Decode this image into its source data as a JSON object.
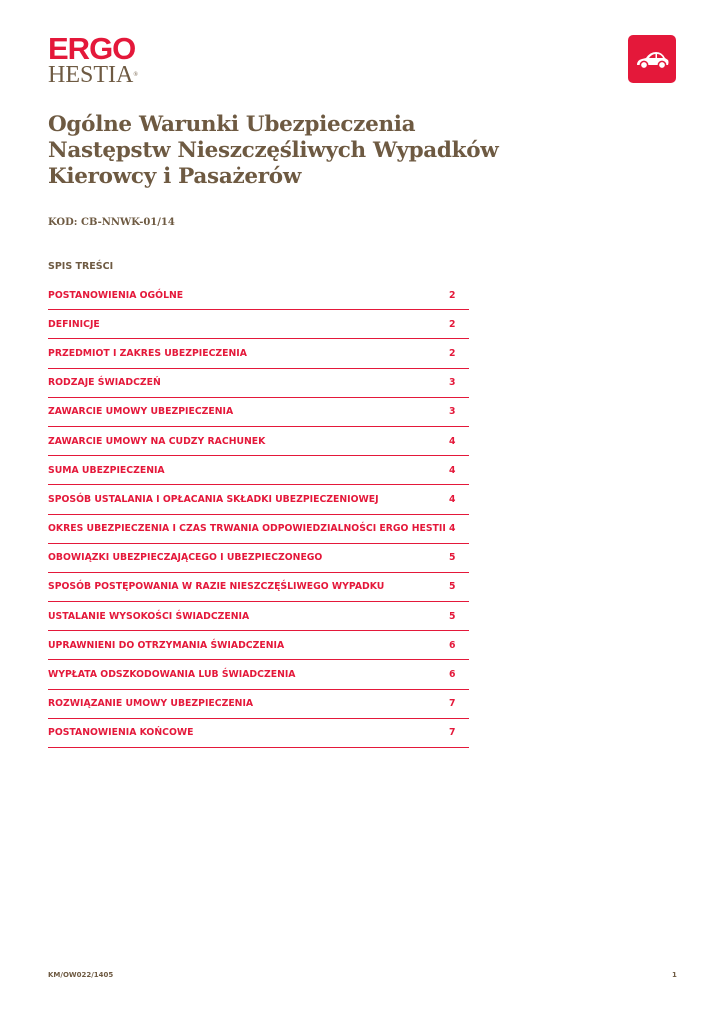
{
  "logo": {
    "line1": "ERGO",
    "line2": "HESTIA",
    "reg": "®"
  },
  "icon": "car-icon",
  "title_lines": [
    "Ogólne Warunki Ubezpieczenia",
    "Następstw Nieszczęśliwych Wypadków",
    "Kierowcy i Pasażerów"
  ],
  "code": "KOD: CB-NNWK-01/14",
  "toc": {
    "heading": "SPIS TREŚCI",
    "items": [
      {
        "label": "POSTANOWIENIA OGÓLNE",
        "page": "2"
      },
      {
        "label": "DEFINICJE",
        "page": "2"
      },
      {
        "label": "PRZEDMIOT I ZAKRES UBEZPIECZENIA",
        "page": "2"
      },
      {
        "label": "RODZAJE ŚWIADCZEŃ",
        "page": "3"
      },
      {
        "label": "ZAWARCIE UMOWY UBEZPIECZENIA",
        "page": "3"
      },
      {
        "label": "ZAWARCIE UMOWY NA CUDZY RACHUNEK",
        "page": "4"
      },
      {
        "label": "SUMA UBEZPIECZENIA",
        "page": "4"
      },
      {
        "label": "SPOSÓB USTALANIA I OPŁACANIA SKŁADKI UBEZPIECZENIOWEJ",
        "page": "4"
      },
      {
        "label": "OKRES UBEZPIECZENIA I CZAS TRWANIA ODPOWIEDZIALNOŚCI ERGO HESTII",
        "page": "4"
      },
      {
        "label": "OBOWIĄZKI UBEZPIECZAJĄCEGO I UBEZPIECZONEGO",
        "page": "5"
      },
      {
        "label": "SPOSÓB POSTĘPOWANIA W RAZIE NIESZCZĘŚLIWEGO WYPADKU",
        "page": "5"
      },
      {
        "label": "USTALANIE WYSOKOŚCI ŚWIADCZENIA",
        "page": "5"
      },
      {
        "label": "UPRAWNIENI DO OTRZYMANIA ŚWIADCZENIA",
        "page": "6"
      },
      {
        "label": "WYPŁATA ODSZKODOWANIA LUB ŚWIADCZENIA",
        "page": "6"
      },
      {
        "label": "ROZWIĄZANIE UMOWY UBEZPIECZENIA",
        "page": "7"
      },
      {
        "label": "POSTANOWIENIA KOŃCOWE",
        "page": "7"
      }
    ]
  },
  "footer": {
    "doc_id": "KM/OW022/1405",
    "page": "1"
  },
  "colors": {
    "brand_red": "#e4183a",
    "brand_brown": "#6e5a42"
  }
}
